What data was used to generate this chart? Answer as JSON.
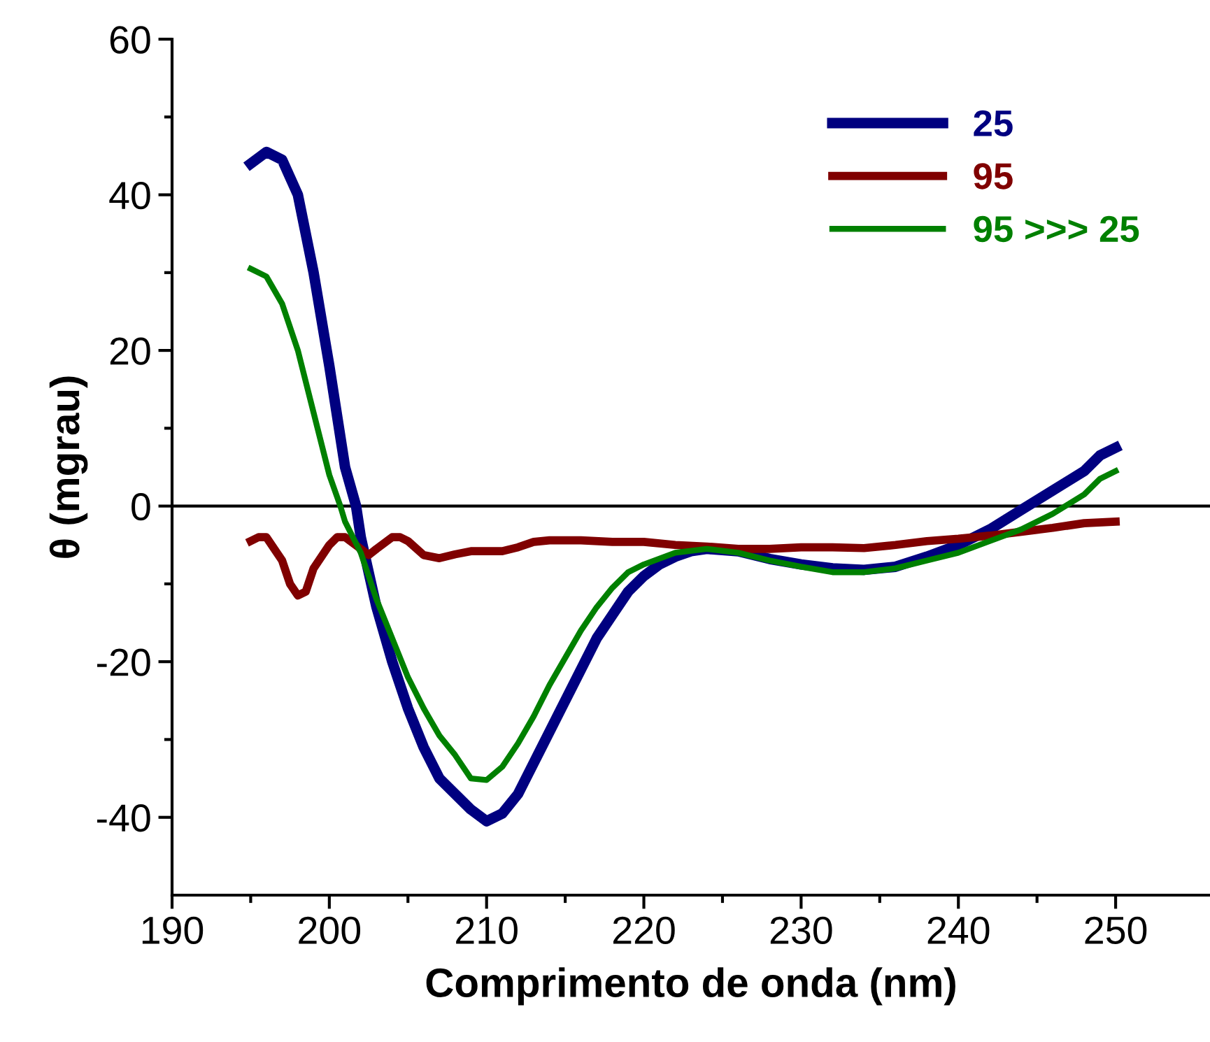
{
  "chart_data": {
    "type": "line",
    "xlabel": "Comprimento de onda (nm)",
    "ylabel": "θ (mgrau)",
    "xlim": [
      190,
      256
    ],
    "ylim": [
      -50,
      60
    ],
    "xticks": [
      190,
      200,
      210,
      220,
      230,
      240,
      250
    ],
    "yticks": [
      -40,
      -20,
      0,
      20,
      40,
      60
    ],
    "grid": false,
    "legend": "top right",
    "marker": "none",
    "line_style": "solid",
    "ref_lines": [
      {
        "axis": "y",
        "value": 0,
        "color": "#000000"
      }
    ],
    "series": [
      {
        "name": "25",
        "color": "#000080",
        "x": [
          195,
          196,
          197,
          198,
          199,
          200,
          201,
          201.7,
          202,
          203,
          204,
          205,
          206,
          207,
          208,
          209,
          210,
          211,
          212,
          213,
          214,
          215,
          216,
          217,
          218,
          219,
          220,
          221,
          222,
          223,
          224,
          226,
          228,
          230,
          232,
          234,
          236,
          238,
          240,
          242,
          244,
          246,
          248,
          249,
          250
        ],
        "values": [
          44,
          45.5,
          44.5,
          40,
          30,
          18,
          5,
          0,
          -4,
          -13,
          -20,
          -26,
          -31,
          -35,
          -37,
          -39,
          -40.5,
          -39.5,
          -37,
          -33,
          -29,
          -25,
          -21,
          -17,
          -14,
          -11,
          -9,
          -7.5,
          -6.5,
          -5.8,
          -5.5,
          -5.8,
          -6.8,
          -7.5,
          -8,
          -8.2,
          -7.8,
          -6.5,
          -5,
          -3,
          -0.5,
          2,
          4.5,
          6.5,
          7.5
        ]
      },
      {
        "name": "95",
        "color": "#800000",
        "x": [
          195,
          195.5,
          196,
          197,
          197.5,
          198,
          198.5,
          199,
          200,
          200.5,
          201,
          202,
          202.5,
          203,
          204,
          204.5,
          205,
          206,
          207,
          208,
          209,
          210,
          211,
          212,
          213,
          214,
          216,
          218,
          220,
          222,
          224,
          226,
          228,
          230,
          232,
          234,
          236,
          238,
          240,
          242,
          244,
          246,
          248,
          250
        ],
        "values": [
          -4.5,
          -4,
          -4,
          -7,
          -10,
          -11.5,
          -11,
          -8,
          -5,
          -4,
          -4,
          -5.5,
          -6.3,
          -5.5,
          -4,
          -4,
          -4.5,
          -6.3,
          -6.7,
          -6.2,
          -5.8,
          -5.8,
          -5.8,
          -5.3,
          -4.6,
          -4.4,
          -4.4,
          -4.6,
          -4.6,
          -5,
          -5.2,
          -5.5,
          -5.5,
          -5.3,
          -5.3,
          -5.4,
          -5,
          -4.5,
          -4.2,
          -3.8,
          -3.3,
          -2.8,
          -2.2,
          -2
        ]
      },
      {
        "name": "95 >>> 25",
        "color": "#008000",
        "x": [
          195,
          196,
          197,
          198,
          199,
          200,
          200.7,
          201,
          202,
          203,
          204,
          205,
          206,
          207,
          208,
          209,
          210,
          211,
          212,
          213,
          214,
          215,
          216,
          217,
          218,
          219,
          220,
          222,
          224,
          226,
          228,
          230,
          232,
          234,
          236,
          238,
          240,
          242,
          244,
          246,
          248,
          249,
          250
        ],
        "values": [
          30.5,
          29.5,
          26,
          20,
          12,
          4,
          0,
          -2,
          -6,
          -12,
          -17,
          -22,
          -26,
          -29.5,
          -32,
          -35,
          -35.2,
          -33.5,
          -30.5,
          -27,
          -23,
          -19.5,
          -16,
          -13,
          -10.5,
          -8.5,
          -7.5,
          -6,
          -5.5,
          -6,
          -7,
          -7.8,
          -8.5,
          -8.5,
          -8,
          -7,
          -6,
          -4.5,
          -3,
          -1,
          1.5,
          3.5,
          4.5
        ]
      }
    ]
  }
}
